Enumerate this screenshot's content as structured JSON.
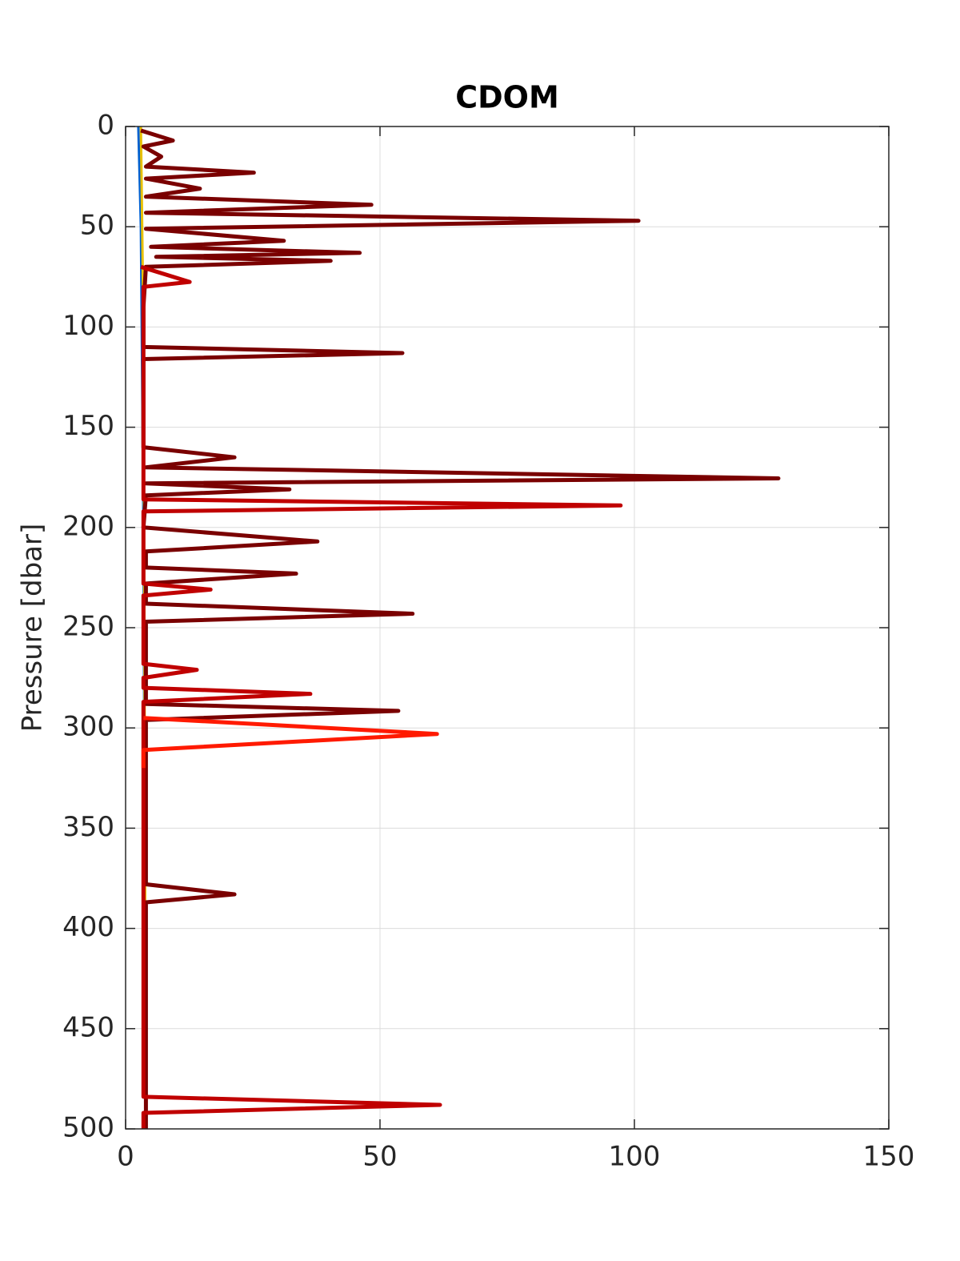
{
  "chart_data": {
    "type": "line",
    "title": "CDOM",
    "ylabel": "Pressure [dbar]",
    "xlim": [
      0,
      150
    ],
    "xticks": [
      0,
      50,
      100,
      150
    ],
    "ylim": [
      0,
      500
    ],
    "yticks": [
      0,
      50,
      100,
      150,
      200,
      250,
      300,
      350,
      400,
      450,
      500
    ],
    "y_reversed": true,
    "grid": true,
    "series": [
      {
        "color": "#0060d0",
        "width": 3,
        "x": [
          2.5,
          3,
          3.5,
          4
        ],
        "y": [
          0,
          50,
          200,
          500
        ]
      },
      {
        "color": "#e8c000",
        "width": 3,
        "x": [
          3,
          3.5,
          4
        ],
        "y": [
          0,
          100,
          500
        ]
      },
      {
        "color": "#7a0000",
        "width": 5,
        "x": [
          3,
          9.3,
          3.5,
          7,
          4,
          25.2,
          4,
          14.6,
          4,
          48.3,
          4,
          100.8,
          4,
          31.1,
          5,
          46,
          6,
          40.3,
          4,
          3.5,
          3.5,
          54.4,
          3.5,
          3.5,
          21.4,
          4,
          128.3,
          4,
          32.2,
          4,
          3.5,
          37.7,
          4,
          4,
          33.5,
          4,
          4,
          56.4,
          4,
          4,
          53.6,
          4,
          4,
          21.4,
          4,
          4
        ],
        "y": [
          2,
          7,
          10,
          15,
          20,
          23,
          26,
          31,
          35,
          39,
          43,
          47,
          51,
          57,
          60,
          63,
          65,
          67,
          70,
          90,
          110,
          113,
          116,
          160,
          165,
          170,
          175.5,
          178,
          181,
          184,
          200,
          207,
          212,
          220,
          223,
          228,
          238,
          243,
          247,
          288,
          291.5,
          296,
          378,
          383,
          387,
          500
        ]
      },
      {
        "color": "#c00000",
        "width": 5,
        "x": [
          3,
          12.6,
          3.5,
          3.5,
          97.3,
          3.5,
          3.5,
          16.7,
          3.5,
          3.5,
          14,
          3.5,
          3.5,
          36.3,
          3.5,
          3.5,
          61.8,
          3.5,
          3.5
        ],
        "y": [
          70,
          77.5,
          80,
          186,
          189,
          192,
          228,
          231,
          234,
          268,
          271,
          275,
          280,
          283,
          287,
          484,
          488,
          492,
          500
        ]
      },
      {
        "color": "#ff1a00",
        "width": 5,
        "x": [
          3.5,
          61.2,
          3.5,
          3.5
        ],
        "y": [
          295,
          303,
          311,
          320
        ]
      }
    ]
  }
}
